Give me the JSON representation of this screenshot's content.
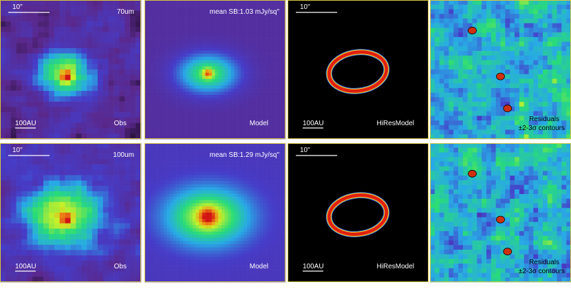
{
  "rows": [
    {
      "band": "70um",
      "obs": {
        "scale_angle": "10\"",
        "scale_length": "100AU",
        "label": "Obs"
      },
      "model": {
        "mean_sb": "mean SB:1.03 mJy/sq\"",
        "label": "Model"
      },
      "hires": {
        "scale_angle": "10\"",
        "scale_length": "100AU",
        "label": "HiResModel"
      },
      "residuals": {
        "label": "Residuals",
        "contours": "±2-3σ contours"
      }
    },
    {
      "band": "100um",
      "obs": {
        "scale_angle": "10\"",
        "scale_length": "100AU",
        "label": "Obs"
      },
      "model": {
        "mean_sb": "mean SB:1.29 mJy/sq\"",
        "label": "Model"
      },
      "hires": {
        "scale_angle": "10\"",
        "scale_length": "100AU",
        "label": "HiResModel"
      },
      "residuals": {
        "label": "Residuals",
        "contours": "±2-3σ contours"
      }
    }
  ]
}
